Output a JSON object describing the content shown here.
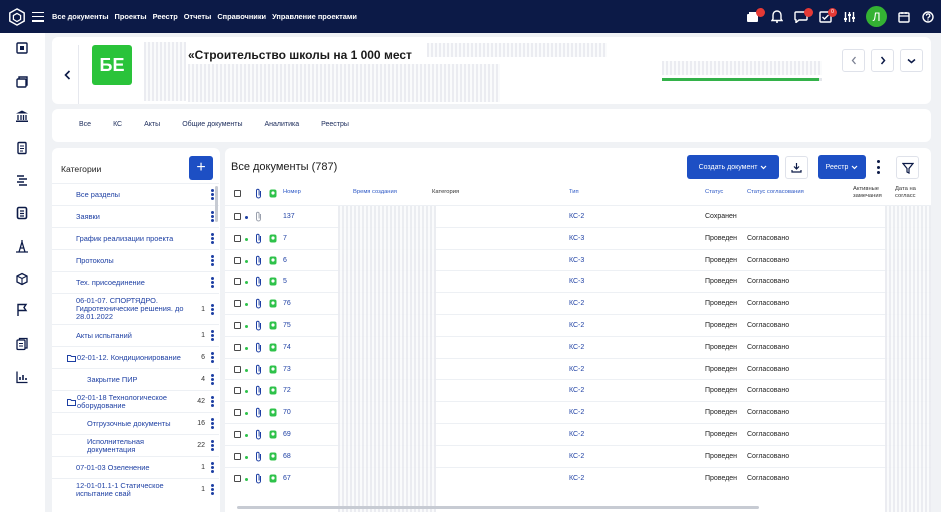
{
  "topbar": {
    "nav": [
      "Все документы",
      "Проекты",
      "Реестр",
      "Отчеты",
      "Справочники",
      "Управление проектами"
    ],
    "notification_count": "0",
    "user_initial": "Л"
  },
  "project": {
    "logo_text": "БЕ",
    "title": "«Строительство школы на 1 000 мест",
    "progress": 0.98
  },
  "tabs": [
    "Все",
    "КС",
    "Акты",
    "Общие документы",
    "Аналитика",
    "Реестры"
  ],
  "categories": {
    "title": "Категории",
    "add_label": "+",
    "items": [
      {
        "label": "Все разделы",
        "count": "",
        "folder": false,
        "indent": 0,
        "h": 22
      },
      {
        "label": "Заявки",
        "count": "",
        "folder": false,
        "indent": 0,
        "h": 22
      },
      {
        "label": "График реализации проекта",
        "count": "",
        "folder": false,
        "indent": 0,
        "h": 22
      },
      {
        "label": "Протоколы",
        "count": "",
        "folder": false,
        "indent": 0,
        "h": 22
      },
      {
        "label": "Тех. присоединение",
        "count": "",
        "folder": false,
        "indent": 0,
        "h": 22
      },
      {
        "label": "06-01-07. СПОРТЯДРО. Гидротехнические решения. до 28.01.2022",
        "count": "1",
        "folder": false,
        "indent": 0,
        "h": 31
      },
      {
        "label": "Акты испытаний",
        "count": "1",
        "folder": false,
        "indent": 0,
        "h": 22
      },
      {
        "label": "02-01-12. Кондиционирование",
        "count": "6",
        "folder": true,
        "indent": 0,
        "h": 22
      },
      {
        "label": "Закрытие ПИР",
        "count": "4",
        "folder": false,
        "indent": 1,
        "h": 22
      },
      {
        "label": "02-01-18 Технологическое оборудование",
        "count": "42",
        "folder": true,
        "indent": 0,
        "h": 22
      },
      {
        "label": "Отгрузочные документы",
        "count": "16",
        "folder": false,
        "indent": 1,
        "h": 22
      },
      {
        "label": "Исполнительная документация",
        "count": "22",
        "folder": false,
        "indent": 1,
        "h": 22
      },
      {
        "label": "07-01-03 Озеленение",
        "count": "1",
        "folder": false,
        "indent": 0,
        "h": 22
      },
      {
        "label": "12-01-01.1-1 Статическое испытание свай",
        "count": "1",
        "folder": false,
        "indent": 0,
        "h": 22
      }
    ]
  },
  "documents": {
    "title": "Все документы (787)",
    "create_label": "Создать документ",
    "registry_label": "Реестр",
    "columns": {
      "number": "Номер",
      "created": "Время создания",
      "category": "Категория",
      "type": "Тип",
      "status": "Статус",
      "approval": "Статус согласования",
      "active": "Активные замечания",
      "date": "Дата на согласс"
    },
    "rows": [
      {
        "number": "137",
        "type": "КС-2",
        "status": "Сохранен",
        "approval": "",
        "dot": "#1d3fa3",
        "tag": false
      },
      {
        "number": "7",
        "type": "КС-3",
        "status": "Проведен",
        "approval": "Согласовано",
        "dot": "#2ec24a",
        "tag": true
      },
      {
        "number": "6",
        "type": "КС-3",
        "status": "Проведен",
        "approval": "Согласовано",
        "dot": "#2ec24a",
        "tag": true
      },
      {
        "number": "5",
        "type": "КС-3",
        "status": "Проведен",
        "approval": "Согласовано",
        "dot": "#2ec24a",
        "tag": true
      },
      {
        "number": "76",
        "type": "КС-2",
        "status": "Проведен",
        "approval": "Согласовано",
        "dot": "#2ec24a",
        "tag": true
      },
      {
        "number": "75",
        "type": "КС-2",
        "status": "Проведен",
        "approval": "Согласовано",
        "dot": "#2ec24a",
        "tag": true
      },
      {
        "number": "74",
        "type": "КС-2",
        "status": "Проведен",
        "approval": "Согласовано",
        "dot": "#2ec24a",
        "tag": true
      },
      {
        "number": "73",
        "type": "КС-2",
        "status": "Проведен",
        "approval": "Согласовано",
        "dot": "#2ec24a",
        "tag": true
      },
      {
        "number": "72",
        "type": "КС-2",
        "status": "Проведен",
        "approval": "Согласовано",
        "dot": "#2ec24a",
        "tag": true
      },
      {
        "number": "70",
        "type": "КС-2",
        "status": "Проведен",
        "approval": "Согласовано",
        "dot": "#2ec24a",
        "tag": true
      },
      {
        "number": "69",
        "type": "КС-2",
        "status": "Проведен",
        "approval": "Согласовано",
        "dot": "#2ec24a",
        "tag": true
      },
      {
        "number": "68",
        "type": "КС-2",
        "status": "Проведен",
        "approval": "Согласовано",
        "dot": "#2ec24a",
        "tag": true
      },
      {
        "number": "67",
        "type": "КС-2",
        "status": "Проведен",
        "approval": "Согласовано",
        "dot": "#2ec24a",
        "tag": true
      }
    ]
  }
}
